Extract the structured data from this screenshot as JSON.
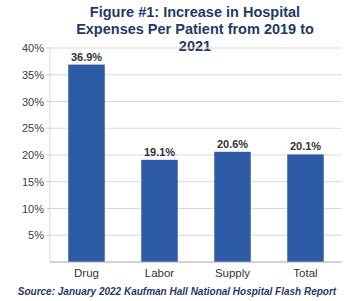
{
  "chart_data": {
    "type": "bar",
    "title": "Figure #1: Increase in Hospital Expenses Per Patient from 2019 to 2021",
    "source": "Source: January 2022 Kaufman Hall National Hospital Flash Report",
    "categories": [
      "Drug",
      "Labor",
      "Supply",
      "Total"
    ],
    "values": [
      36.9,
      19.1,
      20.6,
      20.1
    ],
    "value_labels": [
      "36.9%",
      "19.1%",
      "20.6%",
      "20.1%"
    ],
    "color": "#2d5ba6",
    "ylim": [
      0,
      40
    ],
    "yticks": [
      {
        "value": 5,
        "label": "5%"
      },
      {
        "value": 10,
        "label": "10%"
      },
      {
        "value": 15,
        "label": "15%"
      },
      {
        "value": 20,
        "label": "20%"
      },
      {
        "value": 25,
        "label": "25%"
      },
      {
        "value": 30,
        "label": "30%"
      },
      {
        "value": 35,
        "label": "35%"
      },
      {
        "value": 40,
        "label": "40%"
      }
    ],
    "grid": true,
    "data_labels": true
  }
}
